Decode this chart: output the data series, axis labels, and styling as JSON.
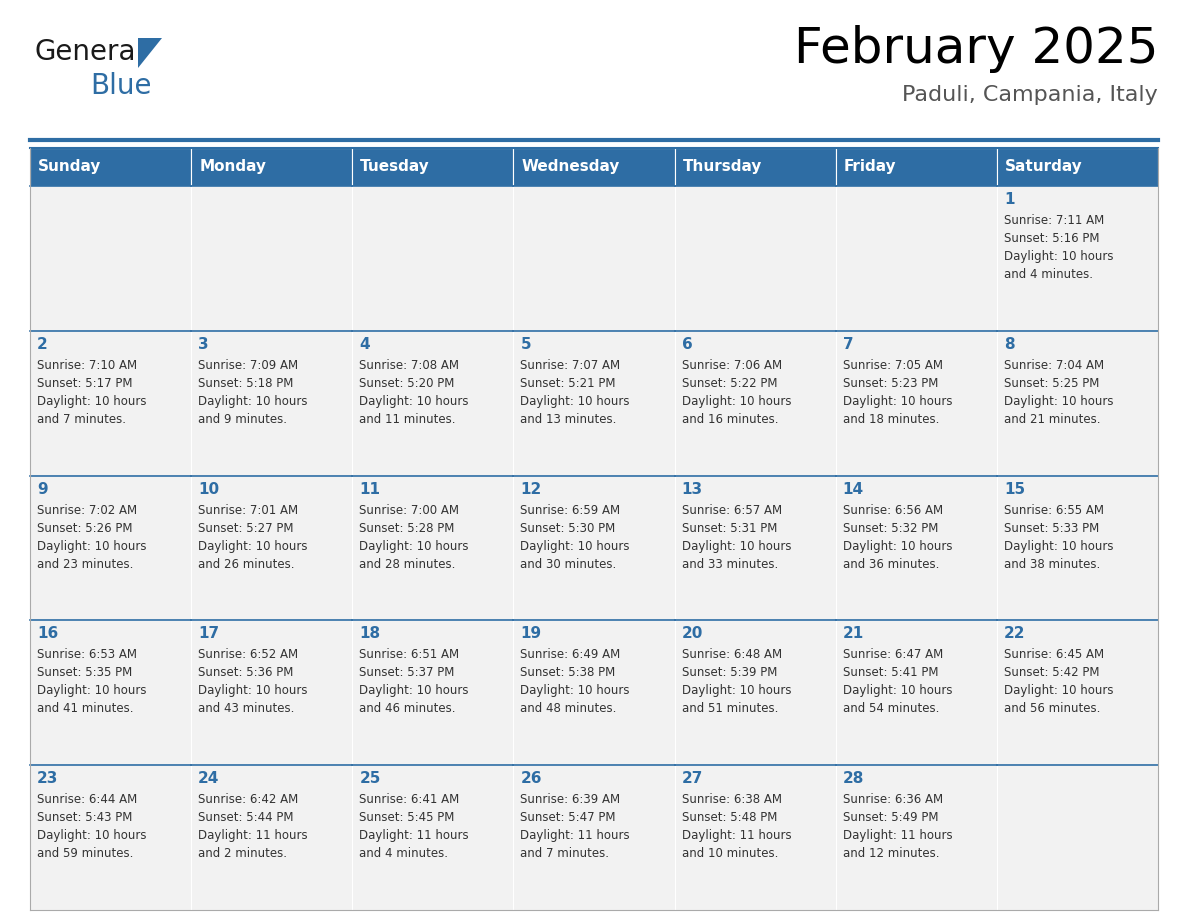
{
  "title": "February 2025",
  "subtitle": "Paduli, Campania, Italy",
  "days_of_week": [
    "Sunday",
    "Monday",
    "Tuesday",
    "Wednesday",
    "Thursday",
    "Friday",
    "Saturday"
  ],
  "header_bg": "#2E6DA4",
  "header_text": "#FFFFFF",
  "cell_bg": "#F2F2F2",
  "day_number_color": "#2E6DA4",
  "text_color": "#333333",
  "line_color": "#2E6DA4",
  "calendar_data": [
    [
      {
        "day": null,
        "sunrise": null,
        "sunset": null,
        "daylight": null
      },
      {
        "day": null,
        "sunrise": null,
        "sunset": null,
        "daylight": null
      },
      {
        "day": null,
        "sunrise": null,
        "sunset": null,
        "daylight": null
      },
      {
        "day": null,
        "sunrise": null,
        "sunset": null,
        "daylight": null
      },
      {
        "day": null,
        "sunrise": null,
        "sunset": null,
        "daylight": null
      },
      {
        "day": null,
        "sunrise": null,
        "sunset": null,
        "daylight": null
      },
      {
        "day": 1,
        "sunrise": "7:11 AM",
        "sunset": "5:16 PM",
        "daylight": "10 hours\nand 4 minutes."
      }
    ],
    [
      {
        "day": 2,
        "sunrise": "7:10 AM",
        "sunset": "5:17 PM",
        "daylight": "10 hours\nand 7 minutes."
      },
      {
        "day": 3,
        "sunrise": "7:09 AM",
        "sunset": "5:18 PM",
        "daylight": "10 hours\nand 9 minutes."
      },
      {
        "day": 4,
        "sunrise": "7:08 AM",
        "sunset": "5:20 PM",
        "daylight": "10 hours\nand 11 minutes."
      },
      {
        "day": 5,
        "sunrise": "7:07 AM",
        "sunset": "5:21 PM",
        "daylight": "10 hours\nand 13 minutes."
      },
      {
        "day": 6,
        "sunrise": "7:06 AM",
        "sunset": "5:22 PM",
        "daylight": "10 hours\nand 16 minutes."
      },
      {
        "day": 7,
        "sunrise": "7:05 AM",
        "sunset": "5:23 PM",
        "daylight": "10 hours\nand 18 minutes."
      },
      {
        "day": 8,
        "sunrise": "7:04 AM",
        "sunset": "5:25 PM",
        "daylight": "10 hours\nand 21 minutes."
      }
    ],
    [
      {
        "day": 9,
        "sunrise": "7:02 AM",
        "sunset": "5:26 PM",
        "daylight": "10 hours\nand 23 minutes."
      },
      {
        "day": 10,
        "sunrise": "7:01 AM",
        "sunset": "5:27 PM",
        "daylight": "10 hours\nand 26 minutes."
      },
      {
        "day": 11,
        "sunrise": "7:00 AM",
        "sunset": "5:28 PM",
        "daylight": "10 hours\nand 28 minutes."
      },
      {
        "day": 12,
        "sunrise": "6:59 AM",
        "sunset": "5:30 PM",
        "daylight": "10 hours\nand 30 minutes."
      },
      {
        "day": 13,
        "sunrise": "6:57 AM",
        "sunset": "5:31 PM",
        "daylight": "10 hours\nand 33 minutes."
      },
      {
        "day": 14,
        "sunrise": "6:56 AM",
        "sunset": "5:32 PM",
        "daylight": "10 hours\nand 36 minutes."
      },
      {
        "day": 15,
        "sunrise": "6:55 AM",
        "sunset": "5:33 PM",
        "daylight": "10 hours\nand 38 minutes."
      }
    ],
    [
      {
        "day": 16,
        "sunrise": "6:53 AM",
        "sunset": "5:35 PM",
        "daylight": "10 hours\nand 41 minutes."
      },
      {
        "day": 17,
        "sunrise": "6:52 AM",
        "sunset": "5:36 PM",
        "daylight": "10 hours\nand 43 minutes."
      },
      {
        "day": 18,
        "sunrise": "6:51 AM",
        "sunset": "5:37 PM",
        "daylight": "10 hours\nand 46 minutes."
      },
      {
        "day": 19,
        "sunrise": "6:49 AM",
        "sunset": "5:38 PM",
        "daylight": "10 hours\nand 48 minutes."
      },
      {
        "day": 20,
        "sunrise": "6:48 AM",
        "sunset": "5:39 PM",
        "daylight": "10 hours\nand 51 minutes."
      },
      {
        "day": 21,
        "sunrise": "6:47 AM",
        "sunset": "5:41 PM",
        "daylight": "10 hours\nand 54 minutes."
      },
      {
        "day": 22,
        "sunrise": "6:45 AM",
        "sunset": "5:42 PM",
        "daylight": "10 hours\nand 56 minutes."
      }
    ],
    [
      {
        "day": 23,
        "sunrise": "6:44 AM",
        "sunset": "5:43 PM",
        "daylight": "10 hours\nand 59 minutes."
      },
      {
        "day": 24,
        "sunrise": "6:42 AM",
        "sunset": "5:44 PM",
        "daylight": "11 hours\nand 2 minutes."
      },
      {
        "day": 25,
        "sunrise": "6:41 AM",
        "sunset": "5:45 PM",
        "daylight": "11 hours\nand 4 minutes."
      },
      {
        "day": 26,
        "sunrise": "6:39 AM",
        "sunset": "5:47 PM",
        "daylight": "11 hours\nand 7 minutes."
      },
      {
        "day": 27,
        "sunrise": "6:38 AM",
        "sunset": "5:48 PM",
        "daylight": "11 hours\nand 10 minutes."
      },
      {
        "day": 28,
        "sunrise": "6:36 AM",
        "sunset": "5:49 PM",
        "daylight": "11 hours\nand 12 minutes."
      },
      {
        "day": null,
        "sunrise": null,
        "sunset": null,
        "daylight": null
      }
    ]
  ]
}
